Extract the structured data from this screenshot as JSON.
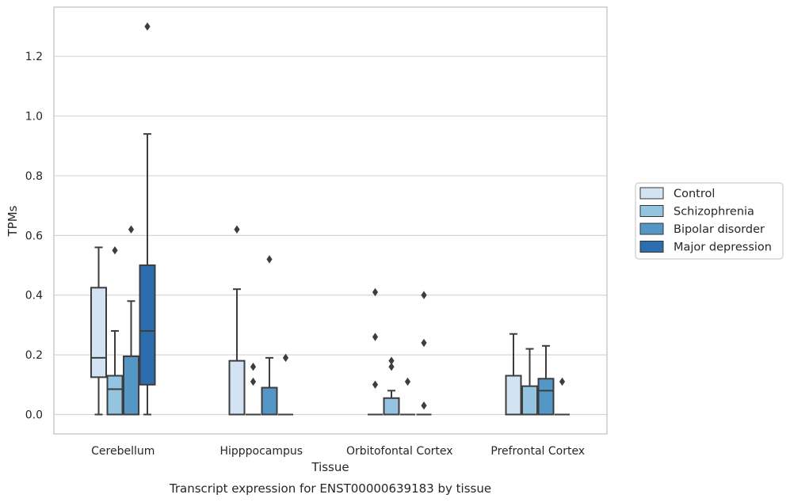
{
  "chart_data": {
    "type": "box",
    "xlabel": "Tissue",
    "ylabel": "TPMs",
    "caption": "Transcript expression for ENST00000639183 by tissue",
    "categories": [
      "Cerebellum",
      "Hipppocampus",
      "Orbitofontal Cortex",
      "Prefrontal Cortex"
    ],
    "ylim": [
      -0.065,
      1.365
    ],
    "yticks": [
      0.0,
      0.2,
      0.4,
      0.6,
      0.8,
      1.0,
      1.2
    ],
    "ytick_labels": [
      "0.0",
      "0.2",
      "0.4",
      "0.6",
      "0.8",
      "1.0",
      "1.2"
    ],
    "grid": "horizontal",
    "legend_position": "right",
    "series": [
      {
        "name": "Control",
        "color": "#d3e3f3",
        "boxes": [
          {
            "min": 0.0,
            "q1": 0.125,
            "median": 0.19,
            "q3": 0.425,
            "max": 0.56,
            "outliers": []
          },
          {
            "min": 0.0,
            "q1": 0.0,
            "median": 0.0,
            "q3": 0.18,
            "max": 0.42,
            "outliers": [
              0.62
            ]
          },
          {
            "min": 0.0,
            "q1": 0.0,
            "median": 0.0,
            "q3": 0.0,
            "max": 0.0,
            "outliers": [
              0.1,
              0.26,
              0.41
            ]
          },
          {
            "min": 0.0,
            "q1": 0.0,
            "median": 0.0,
            "q3": 0.13,
            "max": 0.27,
            "outliers": []
          }
        ]
      },
      {
        "name": "Schizophrenia",
        "color": "#94c4df",
        "boxes": [
          {
            "min": 0.0,
            "q1": 0.0,
            "median": 0.085,
            "q3": 0.13,
            "max": 0.28,
            "outliers": [
              0.55
            ]
          },
          {
            "min": 0.0,
            "q1": 0.0,
            "median": 0.0,
            "q3": 0.0,
            "max": 0.0,
            "outliers": [
              0.11,
              0.16
            ]
          },
          {
            "min": 0.0,
            "q1": 0.0,
            "median": 0.0,
            "q3": 0.055,
            "max": 0.08,
            "outliers": [
              0.16,
              0.18
            ]
          },
          {
            "min": 0.0,
            "q1": 0.0,
            "median": 0.0,
            "q3": 0.095,
            "max": 0.22,
            "outliers": []
          }
        ]
      },
      {
        "name": "Bipolar disorder",
        "color": "#5497c6",
        "boxes": [
          {
            "min": 0.0,
            "q1": 0.0,
            "median": 0.0,
            "q3": 0.195,
            "max": 0.38,
            "outliers": [
              0.62
            ]
          },
          {
            "min": 0.0,
            "q1": 0.0,
            "median": 0.0,
            "q3": 0.09,
            "max": 0.19,
            "outliers": [
              0.52
            ]
          },
          {
            "min": 0.0,
            "q1": 0.0,
            "median": 0.0,
            "q3": 0.0,
            "max": 0.0,
            "outliers": [
              0.11
            ]
          },
          {
            "min": 0.0,
            "q1": 0.0,
            "median": 0.08,
            "q3": 0.12,
            "max": 0.23,
            "outliers": []
          }
        ]
      },
      {
        "name": "Major depression",
        "color": "#2b6daf",
        "boxes": [
          {
            "min": 0.0,
            "q1": 0.1,
            "median": 0.28,
            "q3": 0.5,
            "max": 0.94,
            "outliers": [
              1.3
            ]
          },
          {
            "min": 0.0,
            "q1": 0.0,
            "median": 0.0,
            "q3": 0.0,
            "max": 0.0,
            "outliers": [
              0.19
            ]
          },
          {
            "min": 0.0,
            "q1": 0.0,
            "median": 0.0,
            "q3": 0.0,
            "max": 0.0,
            "outliers": [
              0.03,
              0.24,
              0.4
            ]
          },
          {
            "min": 0.0,
            "q1": 0.0,
            "median": 0.0,
            "q3": 0.0,
            "max": 0.0,
            "outliers": [
              0.11
            ]
          }
        ]
      }
    ]
  }
}
